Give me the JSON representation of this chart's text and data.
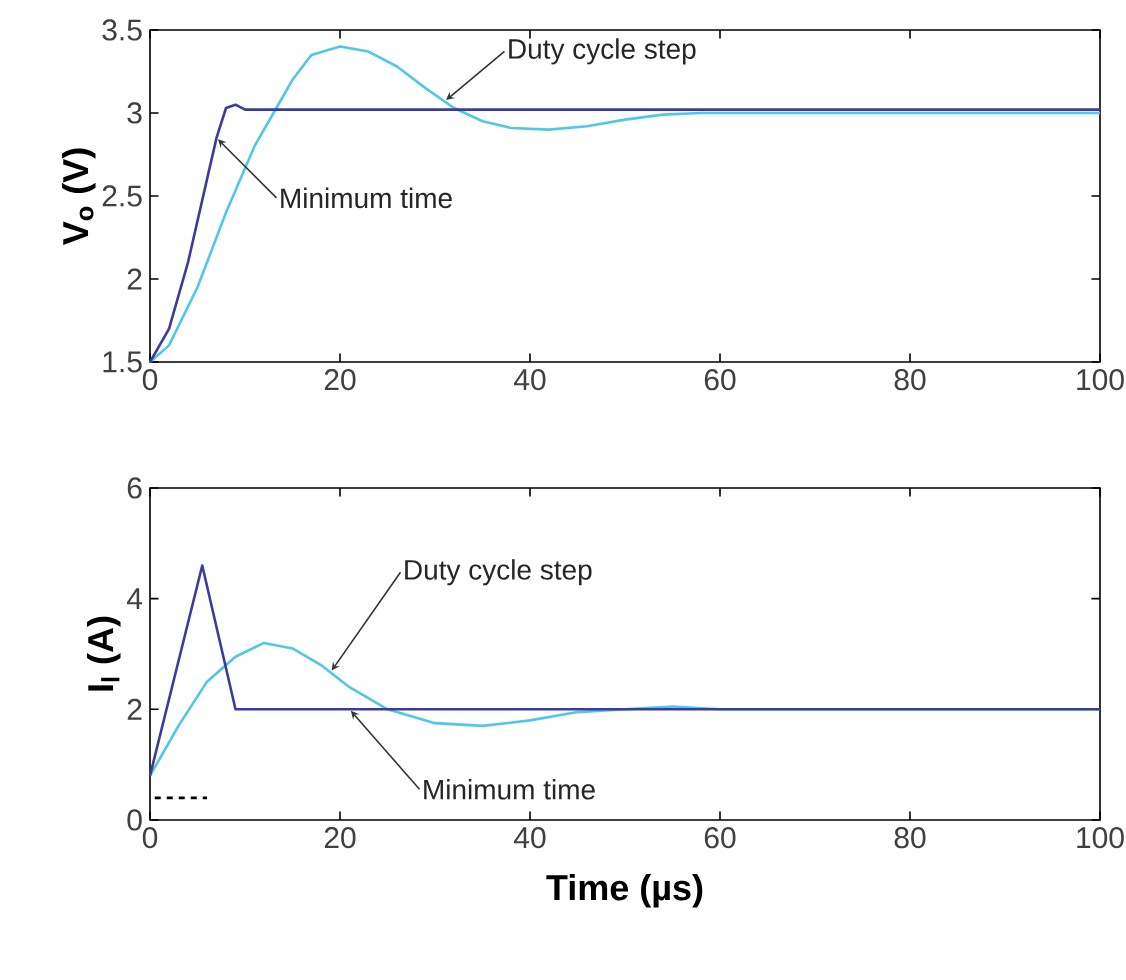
{
  "chart_data": [
    {
      "type": "line",
      "ylabel": "V$_{o}$ (V)",
      "xlim": [
        0,
        100
      ],
      "xticks": [
        0,
        20,
        40,
        60,
        80,
        100
      ],
      "ylim": [
        1.5,
        3.5
      ],
      "yticks": [
        1.5,
        2,
        2.5,
        3,
        3.5
      ],
      "line_style": "solid",
      "series": [
        {
          "color": "#4fc8e8",
          "x": [
            0,
            2,
            5,
            8,
            11,
            13,
            15,
            17,
            20,
            23,
            26,
            29,
            32,
            35,
            38,
            42,
            46,
            50,
            54,
            58,
            100
          ],
          "values": [
            1.5,
            1.6,
            1.95,
            2.4,
            2.8,
            3.0,
            3.2,
            3.35,
            3.4,
            3.37,
            3.28,
            3.15,
            3.03,
            2.95,
            2.91,
            2.9,
            2.92,
            2.96,
            2.99,
            3.0,
            3.0
          ]
        },
        {
          "color": "#3b3b9e",
          "x": [
            0,
            2,
            4,
            6,
            7,
            8,
            9,
            10,
            100
          ],
          "values": [
            1.5,
            1.7,
            2.1,
            2.6,
            2.85,
            3.03,
            3.05,
            3.02,
            3.02
          ]
        }
      ],
      "annotations": [
        {
          "text": "Duty cycle step",
          "x": 31,
          "y": 3.07
        },
        {
          "text": "Minimum time",
          "x": 7,
          "y": 2.85
        }
      ]
    },
    {
      "type": "line",
      "xlabel": "Time (µs)",
      "ylabel": "I$_{l}$ (A)",
      "xlim": [
        0,
        100
      ],
      "xticks": [
        0,
        20,
        40,
        60,
        80,
        100
      ],
      "ylim": [
        0,
        6
      ],
      "yticks": [
        0,
        2,
        4,
        6
      ],
      "line_style": "solid",
      "series": [
        {
          "color": "#4fc8e8",
          "x": [
            0,
            3,
            6,
            9,
            12,
            15,
            18,
            21,
            25,
            30,
            35,
            40,
            45,
            50,
            55,
            60,
            100
          ],
          "values": [
            0.8,
            1.7,
            2.5,
            2.95,
            3.2,
            3.1,
            2.8,
            2.4,
            2.0,
            1.75,
            1.7,
            1.8,
            1.95,
            2.0,
            2.05,
            2.0,
            2.0
          ]
        },
        {
          "color": "#3b3b9e",
          "x": [
            0,
            5.5,
            9,
            100
          ],
          "values": [
            0.8,
            4.6,
            2.0,
            2.0
          ]
        },
        {
          "color": "#000000",
          "line_style": "dashed",
          "x": [
            0.5,
            6
          ],
          "values": [
            0.4,
            0.4
          ]
        }
      ],
      "annotations": [
        {
          "text": "Duty cycle step",
          "x": 19,
          "y": 2.67
        },
        {
          "text": "Minimum time",
          "x": 21,
          "y": 2.0
        }
      ]
    }
  ]
}
